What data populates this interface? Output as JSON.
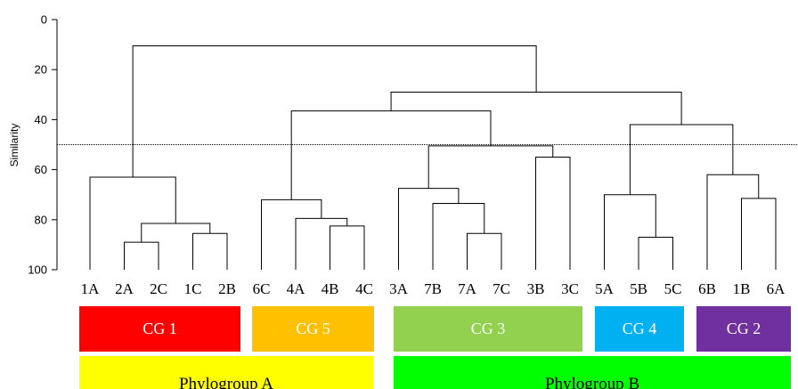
{
  "chart_data": {
    "type": "dendrogram",
    "ylabel": "Similarity",
    "yticks": [
      0,
      20,
      40,
      60,
      80,
      100
    ],
    "ylim": [
      0,
      100
    ],
    "cutoff_line": 50,
    "leaves": [
      "1A",
      "2A",
      "2C",
      "1C",
      "2B",
      "6C",
      "4A",
      "4B",
      "4C",
      "3A",
      "7B",
      "7A",
      "7C",
      "3B",
      "3C",
      "5A",
      "5B",
      "5C",
      "6B",
      "1B",
      "6A"
    ],
    "merges": [
      {
        "left": "L:1",
        "right": "L:2",
        "height": 89
      },
      {
        "left": "L:3",
        "right": "L:4",
        "height": 85.5
      },
      {
        "left": "N:0",
        "right": "N:1",
        "height": 81.5
      },
      {
        "left": "L:0",
        "right": "N:2",
        "height": 63
      },
      {
        "left": "L:7",
        "right": "L:8",
        "height": 82.5
      },
      {
        "left": "L:6",
        "right": "N:4",
        "height": 79.5
      },
      {
        "left": "L:5",
        "right": "N:5",
        "height": 72
      },
      {
        "left": "L:11",
        "right": "L:12",
        "height": 85.5
      },
      {
        "left": "L:10",
        "right": "N:7",
        "height": 73.5
      },
      {
        "left": "L:9",
        "right": "N:8",
        "height": 67.5
      },
      {
        "left": "L:13",
        "right": "L:14",
        "height": 55
      },
      {
        "left": "N:9",
        "right": "N:10",
        "height": 50.5
      },
      {
        "left": "N:6",
        "right": "N:11",
        "height": 36.5
      },
      {
        "left": "L:16",
        "right": "L:17",
        "height": 87
      },
      {
        "left": "L:15",
        "right": "N:13",
        "height": 70
      },
      {
        "left": "L:19",
        "right": "L:20",
        "height": 71.5
      },
      {
        "left": "L:18",
        "right": "N:15",
        "height": 62
      },
      {
        "left": "N:14",
        "right": "N:16",
        "height": 42
      },
      {
        "left": "N:12",
        "right": "N:17",
        "height": 29
      },
      {
        "left": "N:3",
        "right": "N:18",
        "height": 10.5
      }
    ]
  },
  "clonal_groups": [
    {
      "label": "CG 1",
      "color": "#ff0000"
    },
    {
      "label": "CG 5",
      "color": "#ffc000"
    },
    {
      "label": "CG 3",
      "color": "#92d050"
    },
    {
      "label": "CG 4",
      "color": "#00b0f0"
    },
    {
      "label": "CG 2",
      "color": "#7030a0"
    }
  ],
  "phylogroups": [
    {
      "label": "Phylogroup A",
      "color": "#ffff00"
    },
    {
      "label": "Phylogroup B",
      "color": "#00ff00"
    }
  ]
}
